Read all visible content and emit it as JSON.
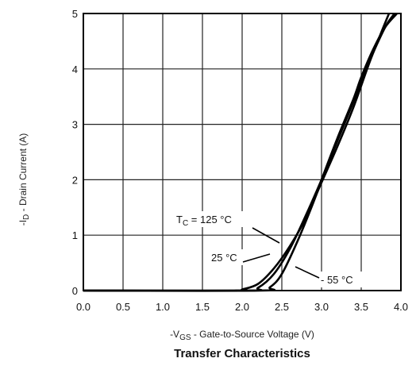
{
  "chart_data": {
    "type": "line",
    "title": "Transfer Characteristics",
    "xlabel_parts": [
      "-V",
      "GS",
      " - Gate-to-Source Voltage (V)"
    ],
    "ylabel_parts": [
      "-I",
      "D",
      " - Drain Current (A)"
    ],
    "xlim": [
      0.0,
      4.0
    ],
    "ylim": [
      0,
      5
    ],
    "grid": true,
    "x_ticks": [
      "0.0",
      "0.5",
      "1.0",
      "1.5",
      "2.0",
      "2.5",
      "3.0",
      "3.5",
      "4.0"
    ],
    "y_ticks": [
      "0",
      "1",
      "2",
      "3",
      "4",
      "5"
    ],
    "series": [
      {
        "name": "125 °C",
        "x": [
          0.0,
          1.9,
          2.0,
          2.2,
          2.4,
          2.6,
          2.8,
          3.0,
          3.2,
          3.4,
          3.6,
          3.75,
          3.85
        ],
        "y": [
          0.0,
          0.0,
          0.02,
          0.12,
          0.4,
          0.8,
          1.3,
          1.95,
          2.6,
          3.3,
          4.1,
          4.65,
          5.0
        ]
      },
      {
        "name": "25 °C",
        "x": [
          0.0,
          2.05,
          2.2,
          2.4,
          2.6,
          2.8,
          3.0,
          3.2,
          3.4,
          3.55,
          3.7,
          3.82,
          3.92
        ],
        "y": [
          0.0,
          0.0,
          0.05,
          0.3,
          0.75,
          1.35,
          2.0,
          2.7,
          3.4,
          3.95,
          4.45,
          4.8,
          5.0
        ]
      },
      {
        "name": "- 55 °C",
        "x": [
          0.0,
          2.2,
          2.35,
          2.5,
          2.7,
          2.9,
          3.0,
          3.2,
          3.4,
          3.5,
          3.65,
          3.8,
          3.95
        ],
        "y": [
          0.0,
          0.0,
          0.06,
          0.3,
          0.9,
          1.6,
          2.0,
          2.75,
          3.45,
          3.85,
          4.35,
          4.75,
          5.0
        ]
      }
    ],
    "annotations": {
      "tc_prefix": "T",
      "tc_sub": "C",
      "tc_label": " = 125 °C",
      "label_25": "25 °C",
      "label_m55": "- 55 °C"
    }
  }
}
